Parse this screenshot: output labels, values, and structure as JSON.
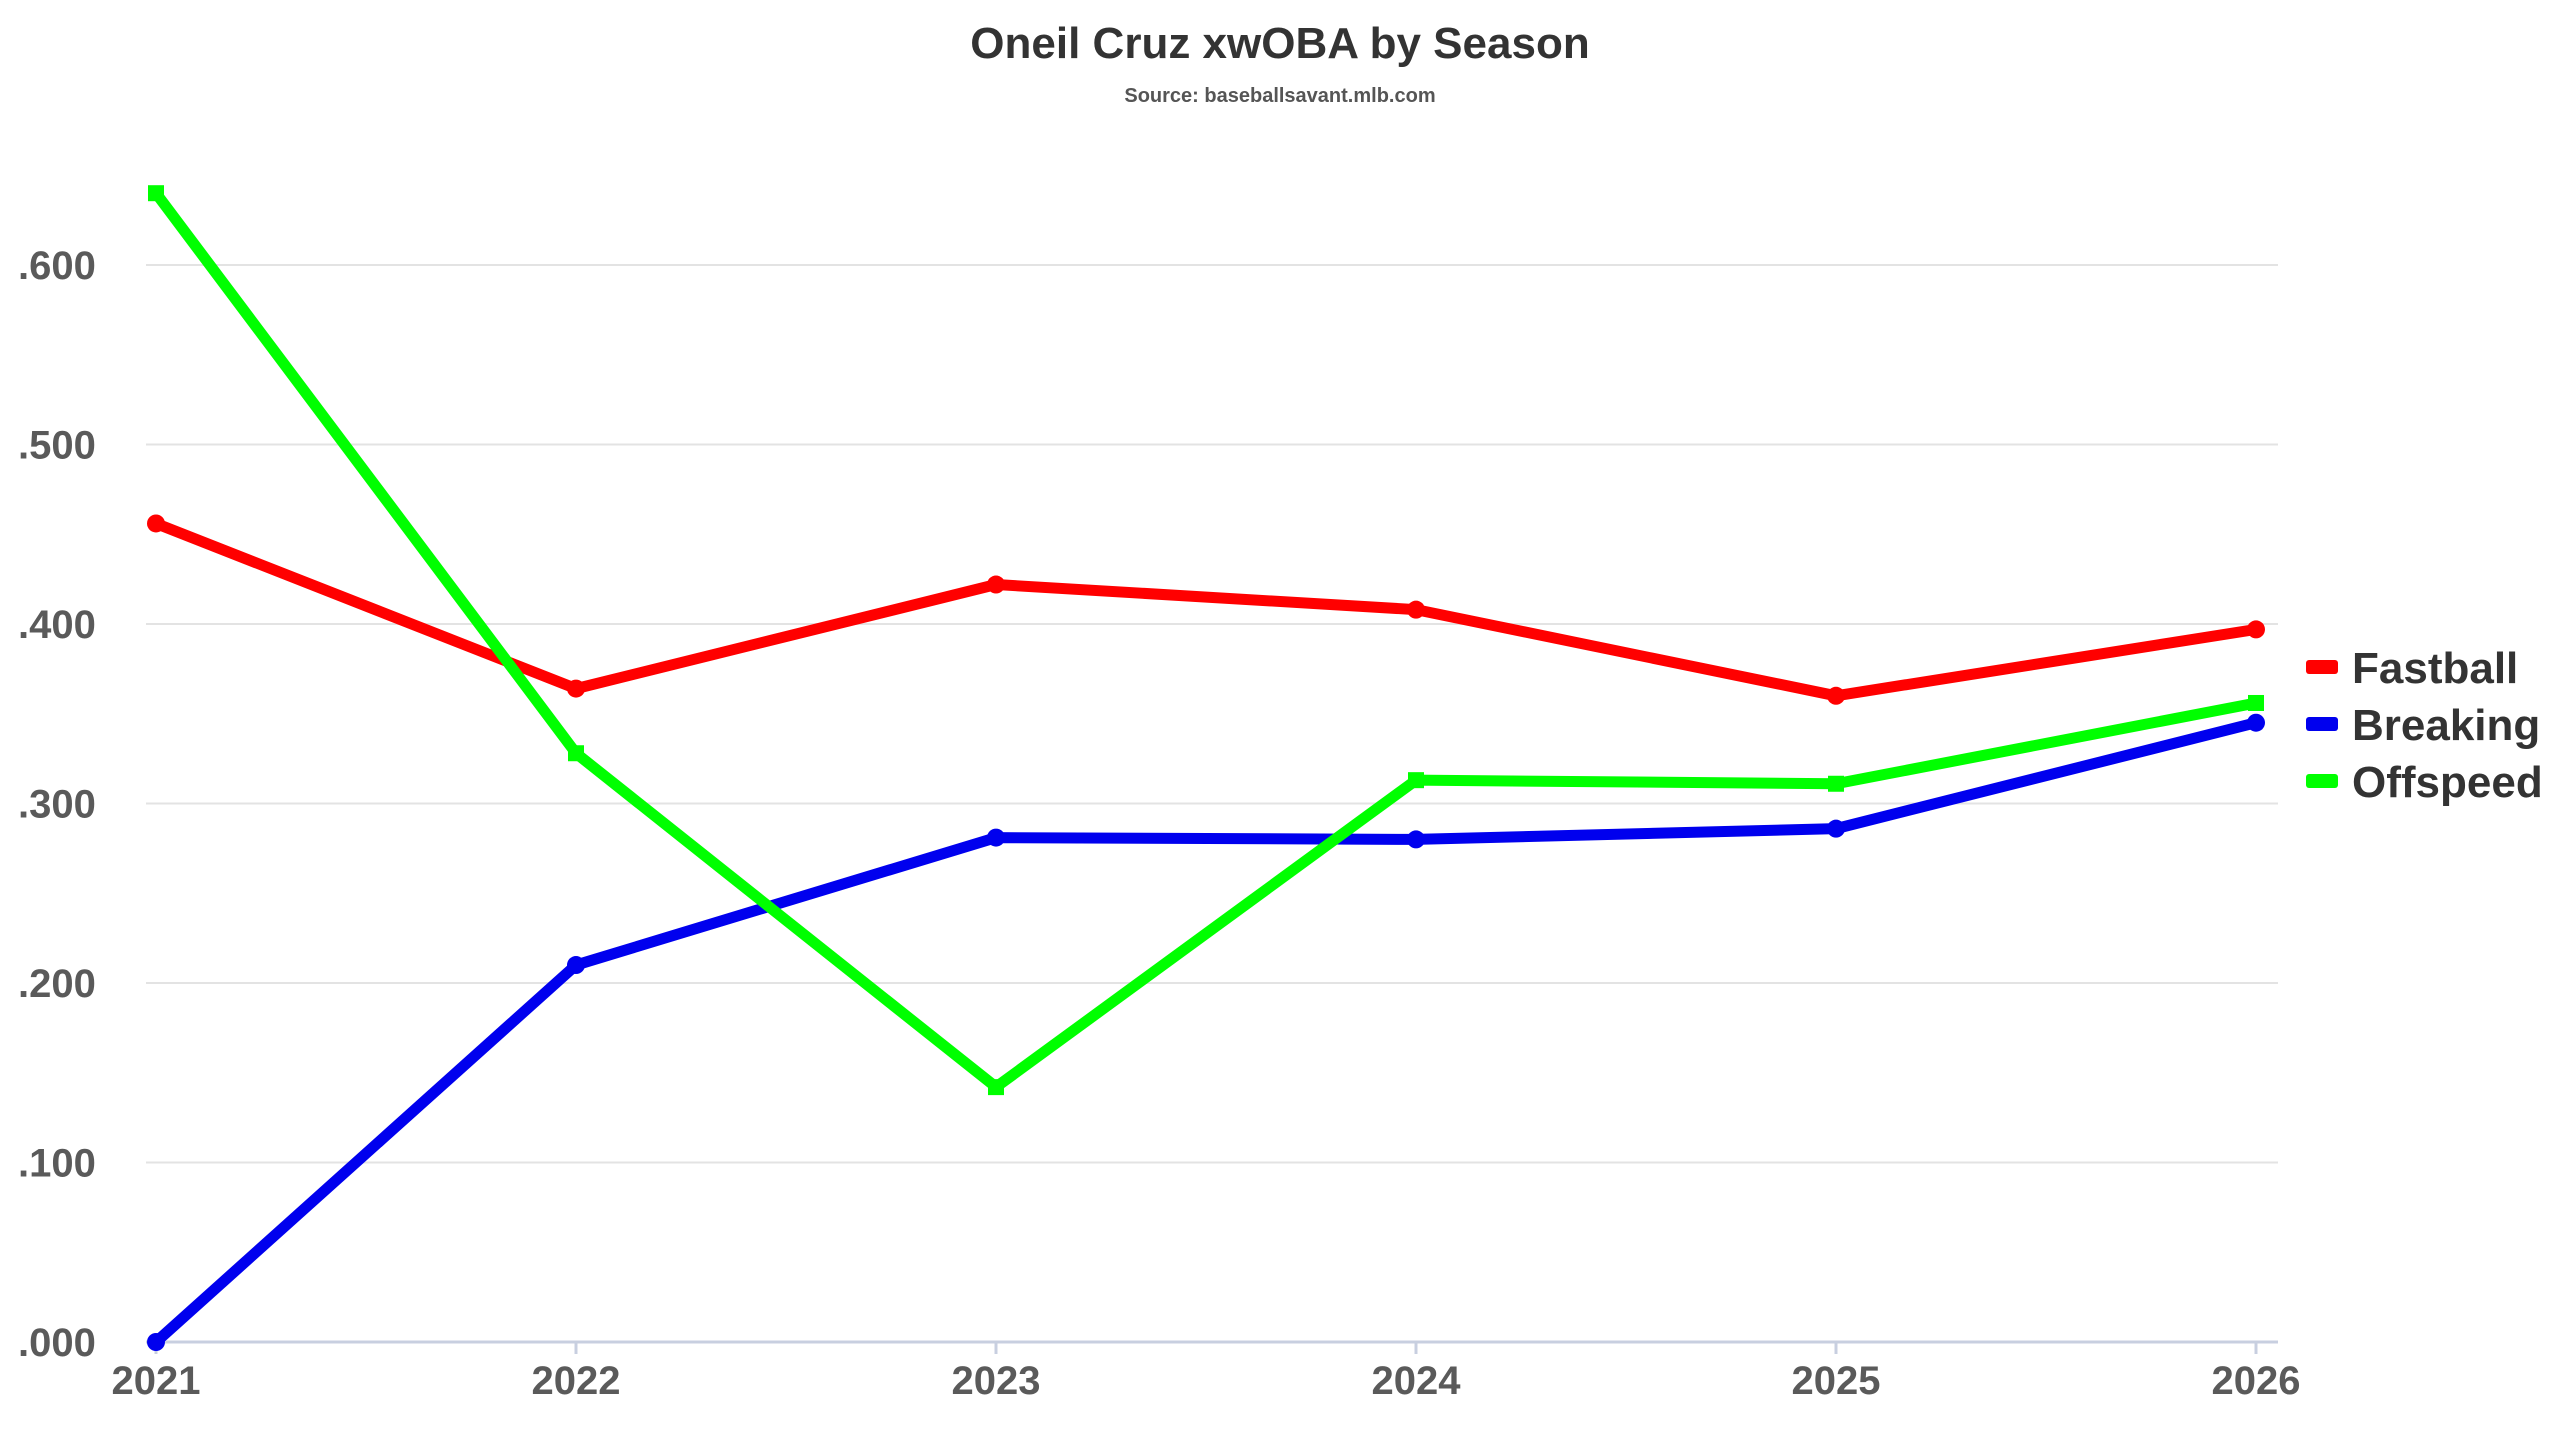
{
  "chart_data": {
    "type": "line",
    "title": "Oneil Cruz xwOBA by Season",
    "subtitle": "Source: baseballsavant.mlb.com",
    "xlabel": "",
    "ylabel": "",
    "categories": [
      "2021",
      "2022",
      "2023",
      "2024",
      "2025",
      "2026"
    ],
    "ylim": [
      0,
      0.6
    ],
    "yticks": [
      0,
      0.1,
      0.2,
      0.3,
      0.4,
      0.5,
      0.6
    ],
    "ytick_labels": [
      ".000",
      ".100",
      ".200",
      ".300",
      ".400",
      ".500",
      ".600"
    ],
    "grid": true,
    "legend_position": "right",
    "series": [
      {
        "name": "Fastball",
        "color": "#ff0000",
        "marker": "circle",
        "values": [
          0.456,
          0.364,
          0.422,
          0.408,
          0.36,
          0.397
        ]
      },
      {
        "name": "Breaking",
        "color": "#0000ee",
        "marker": "circle",
        "values": [
          0.0,
          0.21,
          0.281,
          0.28,
          0.286,
          0.345
        ]
      },
      {
        "name": "Offspeed",
        "color": "#00ff00",
        "marker": "square",
        "values": [
          0.64,
          0.328,
          0.142,
          0.313,
          0.311,
          0.356
        ]
      }
    ]
  }
}
